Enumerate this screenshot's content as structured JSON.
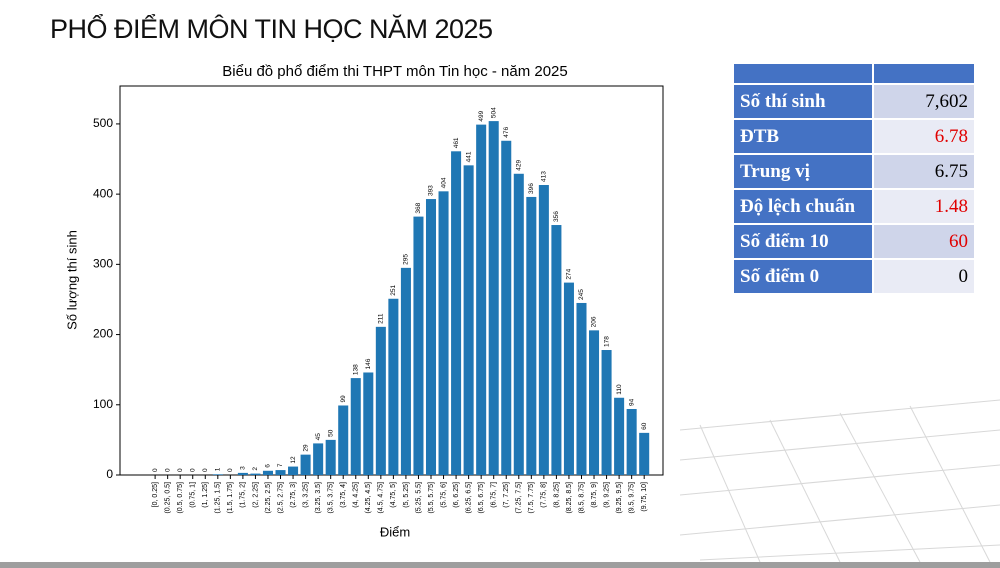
{
  "header": {
    "title": "PHỔ ĐIỂM MÔN TIN HỌC NĂM 2025"
  },
  "chart_data": {
    "type": "bar",
    "title": "Biểu đồ phổ điểm thi THPT môn Tin học - năm 2025",
    "x_label": "Điểm",
    "y_label": "Số lượng thí sinh",
    "categories": [
      "[0, 0.25]",
      "(0.25, 0.5]",
      "(0.5, 0.75]",
      "(0.75, 1]",
      "(1, 1.25]",
      "(1.25, 1.5]",
      "(1.5, 1.75]",
      "(1.75, 2]",
      "(2, 2.25]",
      "(2.25, 2.5]",
      "(2.5, 2.75]",
      "(2.75, 3]",
      "(3, 3.25]",
      "(3.25, 3.5]",
      "(3.5, 3.75]",
      "(3.75, 4]",
      "(4, 4.25]",
      "(4.25, 4.5]",
      "(4.5, 4.75]",
      "(4.75, 5]",
      "(5, 5.25]",
      "(5.25, 5.5]",
      "(5.5, 5.75]",
      "(5.75, 6]",
      "(6, 6.25]",
      "(6.25, 6.5]",
      "(6.5, 6.75]",
      "(6.75, 7]",
      "(7, 7.25]",
      "(7.25, 7.5]",
      "(7.5, 7.75]",
      "(7.75, 8]",
      "(8, 8.25]",
      "(8.25, 8.5]",
      "(8.5, 8.75]",
      "(8.75, 9]",
      "(9, 9.25]",
      "(9.25, 9.5]",
      "(9.5, 9.75]",
      "(9.75, 10]"
    ],
    "values": [
      0,
      0,
      0,
      0,
      0,
      1,
      0,
      3,
      2,
      6,
      7,
      12,
      29,
      45,
      50,
      99,
      138,
      146,
      211,
      251,
      295,
      368,
      393,
      404,
      461,
      441,
      499,
      504,
      476,
      429,
      396,
      413,
      356,
      274,
      245,
      206,
      178,
      110,
      94,
      60
    ],
    "color": "#1f77b4",
    "ylim": [
      0,
      554
    ],
    "yticks": [
      0,
      100,
      200,
      300,
      400,
      500
    ]
  },
  "table": {
    "rows": [
      [
        "Số thí sinh",
        "7,602"
      ],
      [
        "ĐTB",
        "6.78"
      ],
      [
        "Trung vị",
        "6.75"
      ],
      [
        "Độ lệch chuẩn",
        "1.48"
      ],
      [
        "Số điểm 10",
        "60"
      ],
      [
        "Số điểm 0",
        "0"
      ]
    ]
  }
}
